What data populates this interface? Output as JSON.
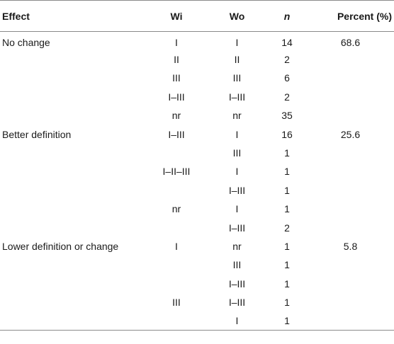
{
  "table": {
    "headers": {
      "effect": "Effect",
      "wi": "Wi",
      "wo": "Wo",
      "n": "n",
      "percent": "Percent (%)"
    },
    "rows": [
      {
        "effect": "No change",
        "wi": "I",
        "wo": "I",
        "n": "14",
        "percent": "68.6"
      },
      {
        "effect": "",
        "wi": "II",
        "wo": "II",
        "n": "2",
        "percent": ""
      },
      {
        "effect": "",
        "wi": "III",
        "wo": "III",
        "n": "6",
        "percent": ""
      },
      {
        "effect": "",
        "wi": "I–III",
        "wo": "I–III",
        "n": "2",
        "percent": ""
      },
      {
        "effect": "",
        "wi": "nr",
        "wo": "nr",
        "n": "35",
        "percent": ""
      },
      {
        "effect": "Better definition",
        "wi": "I–III",
        "wo": "I",
        "n": "16",
        "percent": "25.6"
      },
      {
        "effect": "",
        "wi": "",
        "wo": "III",
        "n": "1",
        "percent": ""
      },
      {
        "effect": "",
        "wi": "I–II–III",
        "wo": "I",
        "n": "1",
        "percent": ""
      },
      {
        "effect": "",
        "wi": "",
        "wo": "I–III",
        "n": "1",
        "percent": ""
      },
      {
        "effect": "",
        "wi": "nr",
        "wo": "I",
        "n": "1",
        "percent": ""
      },
      {
        "effect": "",
        "wi": "",
        "wo": "I–III",
        "n": "2",
        "percent": ""
      },
      {
        "effect": "Lower definition or change",
        "wi": "I",
        "wo": "nr",
        "n": "1",
        "percent": "5.8"
      },
      {
        "effect": "",
        "wi": "",
        "wo": "III",
        "n": "1",
        "percent": ""
      },
      {
        "effect": "",
        "wi": "",
        "wo": "I–III",
        "n": "1",
        "percent": ""
      },
      {
        "effect": "",
        "wi": "III",
        "wo": "I–III",
        "n": "1",
        "percent": ""
      },
      {
        "effect": "",
        "wi": "",
        "wo": "I",
        "n": "1",
        "percent": ""
      }
    ]
  }
}
